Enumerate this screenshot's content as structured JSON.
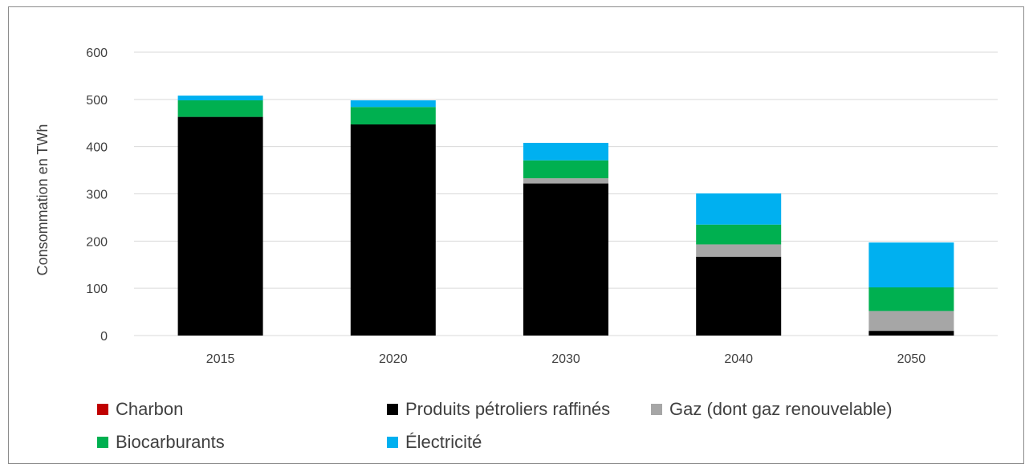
{
  "chart_data": {
    "type": "bar",
    "stacked": true,
    "categories": [
      "2015",
      "2020",
      "2030",
      "2040",
      "2050"
    ],
    "series": [
      {
        "name": "Charbon",
        "color": "#c00000",
        "values": [
          0,
          0,
          0,
          0,
          0
        ]
      },
      {
        "name": "Produits pétroliers raffinés",
        "color": "#000000",
        "values": [
          463,
          447,
          322,
          167,
          10
        ]
      },
      {
        "name": "Gaz (dont gaz renouvelable)",
        "color": "#a6a6a6",
        "values": [
          0,
          0,
          11,
          26,
          42
        ]
      },
      {
        "name": "Biocarburants",
        "color": "#00b050",
        "values": [
          35,
          37,
          38,
          42,
          50
        ]
      },
      {
        "name": "Électricité",
        "color": "#00b0f0",
        "values": [
          10,
          14,
          37,
          66,
          95
        ]
      }
    ],
    "title": "",
    "xlabel": "",
    "ylabel": "Consommation en TWh",
    "ylim": [
      0,
      600
    ],
    "yticks": [
      "0",
      "100",
      "200",
      "300",
      "400",
      "500",
      "600"
    ],
    "grid": true,
    "legend_position": "bottom"
  }
}
